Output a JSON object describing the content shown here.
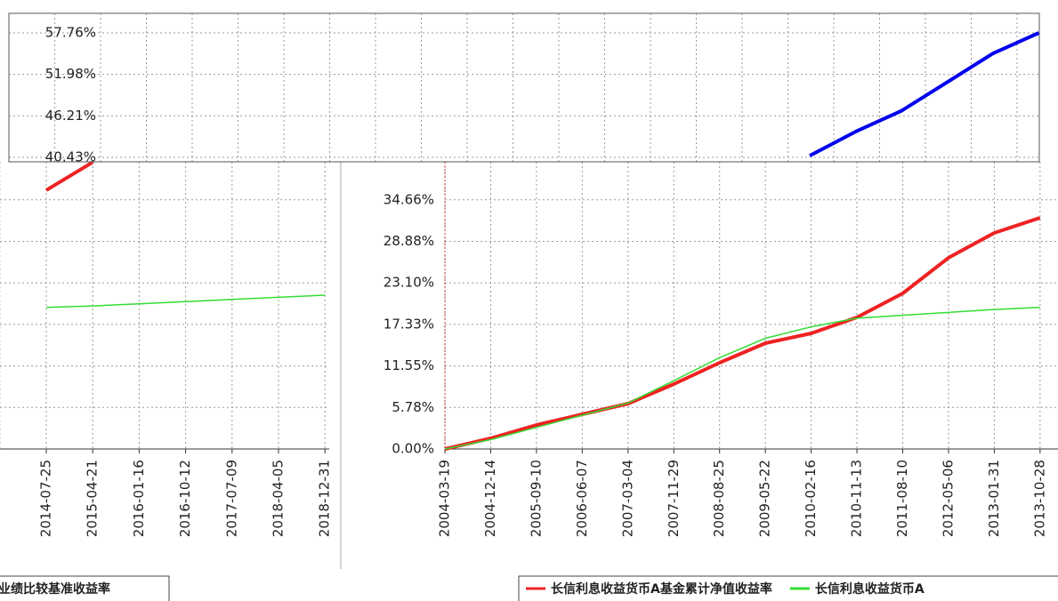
{
  "chart_data": [
    {
      "type": "line",
      "categories": [
        null,
        null,
        null,
        null,
        null,
        null
      ],
      "series": [
        {
          "color": "#0000ee",
          "values": [
            40.67,
            44.0,
            46.9,
            50.9,
            54.9,
            57.76
          ]
        }
      ],
      "ylim": [
        39.81,
        60.48
      ],
      "yticks": [
        {
          "value": 40.43,
          "label": "40.43%"
        },
        {
          "value": 46.21,
          "label": "46.21%"
        },
        {
          "value": 51.98,
          "label": "51.98%"
        },
        {
          "value": 57.76,
          "label": "57.76%"
        }
      ],
      "grid": true
    },
    {
      "type": "line",
      "categories": [
        "2014-07-25",
        "2015-04-21",
        "2016-01-16",
        "2016-10-12",
        "2017-07-09",
        "2018-04-05",
        "2018-12-31"
      ],
      "series": [
        {
          "color": "#ee2222",
          "values": [
            36.0,
            39.9,
            null,
            null,
            null,
            null,
            null
          ]
        },
        {
          "name": "业绩比较基准收益率",
          "color": "#33dd33",
          "values": [
            19.7,
            19.9,
            20.2,
            20.5,
            20.8,
            21.1,
            21.4
          ]
        }
      ],
      "ylim": [
        0,
        39.95
      ],
      "grid": true
    },
    {
      "type": "line",
      "categories": [
        "2004-03-19",
        "2004-12-14",
        "2005-09-10",
        "2006-06-07",
        "2007-03-04",
        "2007-11-29",
        "2008-08-25",
        "2009-05-22",
        "2010-02-16",
        "2010-11-13",
        "2011-08-10",
        "2012-05-06",
        "2013-01-31",
        "2013-10-28"
      ],
      "series": [
        {
          "name": "长信利息收益货币A基金累计净值收益率",
          "color": "#ee2222",
          "values": [
            0,
            1.48,
            3.34,
            4.82,
            6.31,
            9.03,
            12.0,
            14.72,
            16.08,
            18.31,
            21.65,
            26.6,
            30.06,
            32.16
          ]
        },
        {
          "name": "长信利息收益货币A",
          "color": "#33dd33",
          "values": [
            0,
            1.3,
            3.0,
            4.7,
            6.4,
            9.5,
            12.7,
            15.4,
            17.0,
            18.2,
            18.6,
            19.0,
            19.4,
            19.7
          ]
        }
      ],
      "ylim": [
        0,
        39.95
      ],
      "yticks": [
        {
          "value": 0,
          "label": "0.00%"
        },
        {
          "value": 5.78,
          "label": "5.78%"
        },
        {
          "value": 11.55,
          "label": "11.55%"
        },
        {
          "value": 17.33,
          "label": "17.33%"
        },
        {
          "value": 23.1,
          "label": "23.10%"
        },
        {
          "value": 28.88,
          "label": "28.88%"
        },
        {
          "value": 34.66,
          "label": "34.66%"
        }
      ],
      "grid": true
    }
  ]
}
